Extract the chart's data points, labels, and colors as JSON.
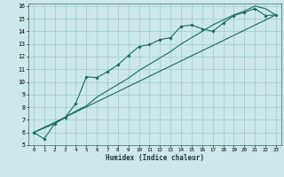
{
  "xlabel": "Humidex (Indice chaleur)",
  "background_color": "#cce8e8",
  "grid_color": "#99cccc",
  "line_color": "#1a6b5a",
  "xlim": [
    -0.5,
    23.5
  ],
  "ylim": [
    5,
    16.2
  ],
  "xticks": [
    0,
    1,
    2,
    3,
    4,
    5,
    6,
    7,
    8,
    9,
    10,
    11,
    12,
    13,
    14,
    15,
    16,
    17,
    18,
    19,
    20,
    21,
    22,
    23
  ],
  "yticks": [
    5,
    6,
    7,
    8,
    9,
    10,
    11,
    12,
    13,
    14,
    15,
    16
  ],
  "line1_x": [
    0,
    1,
    2,
    3,
    4,
    5,
    6,
    7,
    8,
    9,
    10,
    11,
    12,
    13,
    14,
    15,
    16,
    17,
    18,
    19,
    20,
    21,
    22,
    23
  ],
  "line1_y": [
    6.0,
    5.5,
    6.7,
    7.2,
    8.3,
    10.4,
    10.35,
    10.8,
    11.35,
    12.1,
    12.8,
    12.95,
    13.35,
    13.5,
    14.4,
    14.5,
    14.2,
    14.0,
    14.65,
    15.25,
    15.5,
    15.8,
    15.25,
    15.3
  ],
  "line2_x": [
    0,
    2,
    3,
    4,
    5,
    6,
    7,
    8,
    9,
    10,
    11,
    12,
    13,
    14,
    15,
    16,
    17,
    18,
    19,
    20,
    21,
    22,
    23
  ],
  "line2_y": [
    6.0,
    6.7,
    7.2,
    7.7,
    8.1,
    8.8,
    9.3,
    9.8,
    10.3,
    10.9,
    11.4,
    11.9,
    12.4,
    13.0,
    13.5,
    14.0,
    14.5,
    14.9,
    15.3,
    15.6,
    16.0,
    15.8,
    15.3
  ],
  "line3_x": [
    0,
    23
  ],
  "line3_y": [
    6.0,
    15.3
  ]
}
